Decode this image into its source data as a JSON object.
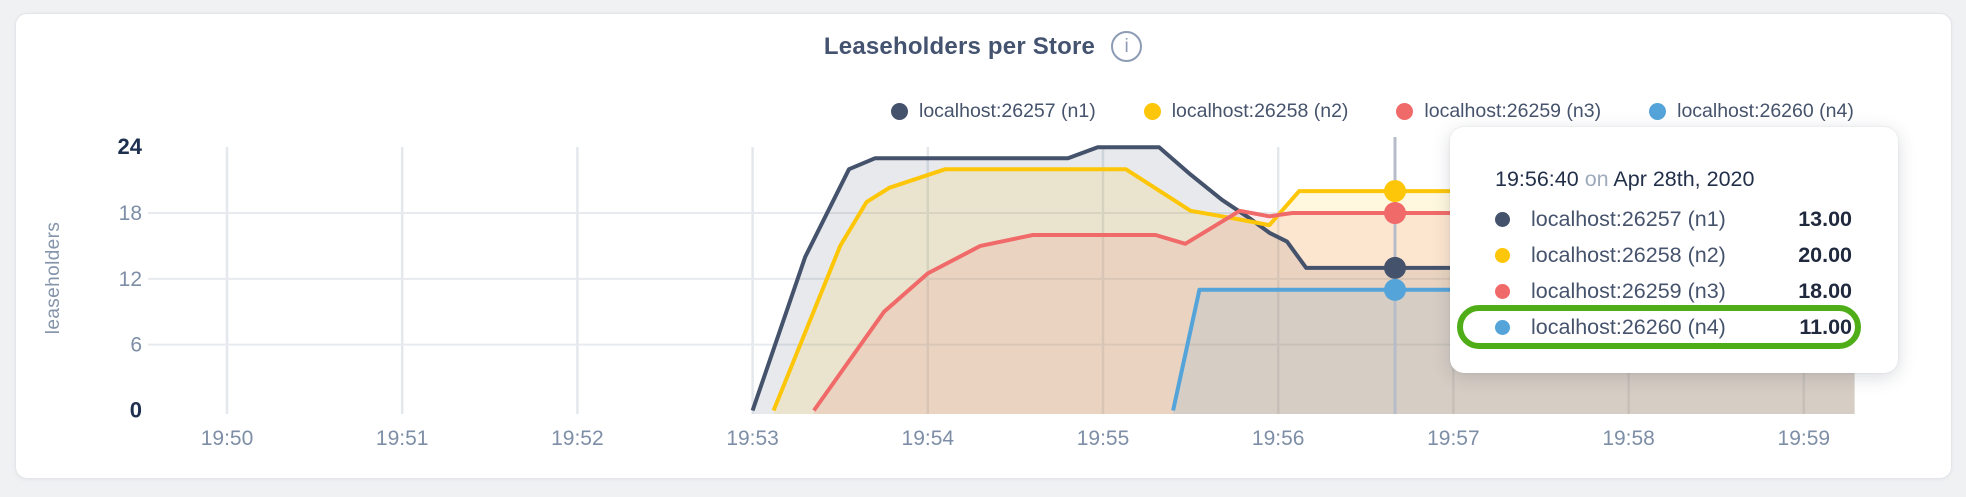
{
  "card": {
    "title": "Leaseholders per Store",
    "info_icon": "i"
  },
  "legend": [
    {
      "label": "localhost:26257 (n1)",
      "color": "#45526b"
    },
    {
      "label": "localhost:26258 (n2)",
      "color": "#fdc608"
    },
    {
      "label": "localhost:26259 (n3)",
      "color": "#f16a6a"
    },
    {
      "label": "localhost:26260 (n4)",
      "color": "#54a4da"
    }
  ],
  "chart_data": {
    "type": "area",
    "title": "Leaseholders per Store",
    "xlabel": "",
    "ylabel": "leaseholders",
    "x_tick_labels": [
      "19:50",
      "19:51",
      "19:52",
      "19:53",
      "19:54",
      "19:55",
      "19:56",
      "19:57",
      "19:58",
      "19:59"
    ],
    "y_tick_values": [
      0,
      6,
      12,
      18,
      24
    ],
    "ylim": [
      0,
      24
    ],
    "x_minutes_range": [
      -0.5,
      9.29
    ],
    "grid": true,
    "legend_position": "top-right",
    "series": [
      {
        "name": "localhost:26257 (n1)",
        "color": "#45526b",
        "points": [
          [
            3.0,
            0
          ],
          [
            3.3,
            14
          ],
          [
            3.55,
            22
          ],
          [
            3.7,
            23
          ],
          [
            4.8,
            23
          ],
          [
            4.97,
            24
          ],
          [
            5.32,
            24
          ],
          [
            5.5,
            21.5
          ],
          [
            5.68,
            19.2
          ],
          [
            5.83,
            17.6
          ],
          [
            5.95,
            16.2
          ],
          [
            6.05,
            15.4
          ],
          [
            6.16,
            13
          ],
          [
            9.29,
            13
          ]
        ]
      },
      {
        "name": "localhost:26258 (n2)",
        "color": "#fdc608",
        "points": [
          [
            3.12,
            0
          ],
          [
            3.5,
            15
          ],
          [
            3.65,
            19
          ],
          [
            3.78,
            20.3
          ],
          [
            4.1,
            22
          ],
          [
            5.13,
            22
          ],
          [
            5.5,
            18.2
          ],
          [
            5.75,
            17.5
          ],
          [
            5.95,
            16.9
          ],
          [
            6.12,
            20
          ],
          [
            9.29,
            20
          ]
        ]
      },
      {
        "name": "localhost:26259 (n3)",
        "color": "#f16a6a",
        "points": [
          [
            3.35,
            0
          ],
          [
            3.75,
            9
          ],
          [
            4.0,
            12.5
          ],
          [
            4.3,
            15
          ],
          [
            4.6,
            16
          ],
          [
            5.3,
            16
          ],
          [
            5.47,
            15.2
          ],
          [
            5.78,
            18.2
          ],
          [
            5.95,
            17.7
          ],
          [
            6.08,
            18
          ],
          [
            9.29,
            18
          ]
        ]
      },
      {
        "name": "localhost:26260 (n4)",
        "color": "#54a4da",
        "points": [
          [
            5.4,
            0
          ],
          [
            5.55,
            11
          ],
          [
            9.29,
            11
          ]
        ]
      }
    ],
    "hover": {
      "x_minutes": 6.6667,
      "values": [
        13,
        20,
        18,
        11
      ]
    }
  },
  "tooltip": {
    "time": "19:56:40",
    "connector": "on",
    "date": "Apr 28th, 2020",
    "rows": [
      {
        "label": "localhost:26257 (n1)",
        "value": "13.00",
        "color": "#45526b",
        "highlighted": false
      },
      {
        "label": "localhost:26258 (n2)",
        "value": "20.00",
        "color": "#fdc608",
        "highlighted": false
      },
      {
        "label": "localhost:26259 (n3)",
        "value": "18.00",
        "color": "#f16a6a",
        "highlighted": false
      },
      {
        "label": "localhost:26260 (n4)",
        "value": "11.00",
        "color": "#54a4da",
        "highlighted": true
      }
    ],
    "highlight_color": "#4fae18"
  }
}
